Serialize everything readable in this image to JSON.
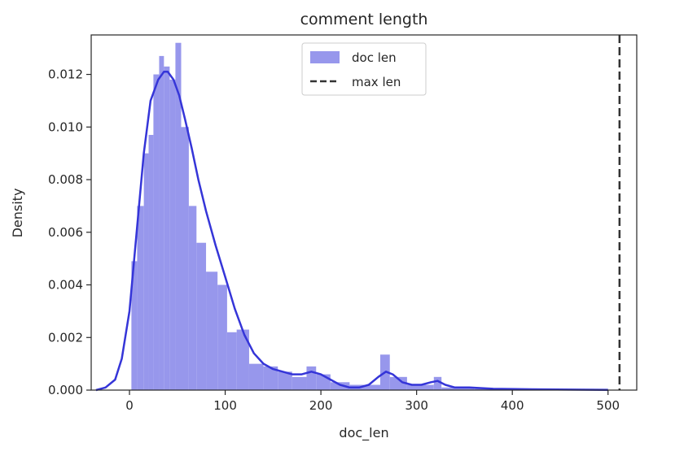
{
  "chart_data": {
    "type": "histogram",
    "title": "comment length",
    "xlabel": "doc_len",
    "ylabel": "Density",
    "xlim": [
      -40,
      530
    ],
    "ylim": [
      0,
      0.0135
    ],
    "xticks": [
      0,
      100,
      200,
      300,
      400,
      500
    ],
    "yticks": [
      0.0,
      0.002,
      0.004,
      0.006,
      0.008,
      0.01,
      0.012
    ],
    "ytick_labels": [
      "0.000",
      "0.002",
      "0.004",
      "0.006",
      "0.008",
      "0.010",
      "0.012"
    ],
    "grid": false,
    "legend": {
      "placement": "top-center",
      "entries": [
        {
          "label": "doc len",
          "kind": "patch",
          "color": "#9797ec"
        },
        {
          "label": "max len",
          "kind": "dashed-line",
          "color": "#333333"
        }
      ]
    },
    "histogram": {
      "name": "doc len",
      "color": "#9797ec",
      "bins": [
        {
          "x0": 2,
          "x1": 8,
          "density": 0.0049
        },
        {
          "x0": 8,
          "x1": 15,
          "density": 0.007
        },
        {
          "x0": 15,
          "x1": 20,
          "density": 0.009
        },
        {
          "x0": 20,
          "x1": 25,
          "density": 0.0097
        },
        {
          "x0": 25,
          "x1": 31,
          "density": 0.012
        },
        {
          "x0": 31,
          "x1": 36,
          "density": 0.0127
        },
        {
          "x0": 36,
          "x1": 42,
          "density": 0.0123
        },
        {
          "x0": 42,
          "x1": 48,
          "density": 0.0118
        },
        {
          "x0": 48,
          "x1": 54,
          "density": 0.0132
        },
        {
          "x0": 54,
          "x1": 62,
          "density": 0.01
        },
        {
          "x0": 62,
          "x1": 70,
          "density": 0.007
        },
        {
          "x0": 70,
          "x1": 80,
          "density": 0.0056
        },
        {
          "x0": 80,
          "x1": 92,
          "density": 0.0045
        },
        {
          "x0": 92,
          "x1": 102,
          "density": 0.004
        },
        {
          "x0": 102,
          "x1": 112,
          "density": 0.0022
        },
        {
          "x0": 112,
          "x1": 125,
          "density": 0.0023
        },
        {
          "x0": 125,
          "x1": 140,
          "density": 0.001
        },
        {
          "x0": 140,
          "x1": 155,
          "density": 0.0009
        },
        {
          "x0": 155,
          "x1": 170,
          "density": 0.0007
        },
        {
          "x0": 170,
          "x1": 185,
          "density": 0.0005
        },
        {
          "x0": 185,
          "x1": 195,
          "density": 0.0009
        },
        {
          "x0": 195,
          "x1": 210,
          "density": 0.0006
        },
        {
          "x0": 210,
          "x1": 230,
          "density": 0.0003
        },
        {
          "x0": 230,
          "x1": 262,
          "density": 0.0002
        },
        {
          "x0": 262,
          "x1": 272,
          "density": 0.00135
        },
        {
          "x0": 272,
          "x1": 290,
          "density": 0.0005
        },
        {
          "x0": 290,
          "x1": 318,
          "density": 0.0002
        },
        {
          "x0": 318,
          "x1": 326,
          "density": 0.0005
        },
        {
          "x0": 326,
          "x1": 360,
          "density": 0.0001
        },
        {
          "x0": 360,
          "x1": 500,
          "density": 5e-05
        }
      ]
    },
    "kde": {
      "name": "doc len",
      "color": "#3535d8",
      "x": [
        -35,
        -25,
        -15,
        -8,
        0,
        8,
        15,
        22,
        30,
        36,
        40,
        46,
        52,
        58,
        65,
        72,
        80,
        90,
        100,
        110,
        120,
        130,
        140,
        150,
        160,
        170,
        180,
        190,
        200,
        210,
        220,
        230,
        240,
        250,
        260,
        268,
        275,
        285,
        295,
        305,
        315,
        322,
        330,
        340,
        355,
        380,
        420,
        460,
        500
      ],
      "y": [
        0.0,
        0.0001,
        0.0004,
        0.0012,
        0.003,
        0.0062,
        0.009,
        0.011,
        0.0118,
        0.0121,
        0.0121,
        0.0118,
        0.0112,
        0.0103,
        0.0092,
        0.008,
        0.0068,
        0.0055,
        0.0043,
        0.0031,
        0.0021,
        0.0014,
        0.001,
        0.0008,
        0.0007,
        0.0006,
        0.0006,
        0.0007,
        0.0006,
        0.0004,
        0.0002,
        0.0001,
        0.0001,
        0.0002,
        0.0005,
        0.0007,
        0.0006,
        0.0003,
        0.0002,
        0.0002,
        0.0003,
        0.00035,
        0.0002,
        0.0001,
        0.0001,
        5e-05,
        3e-05,
        2e-05,
        1e-05
      ]
    },
    "annotations": [
      {
        "type": "vline",
        "x": 512,
        "label": "max len",
        "style": "dashed",
        "color": "#333333"
      }
    ]
  }
}
